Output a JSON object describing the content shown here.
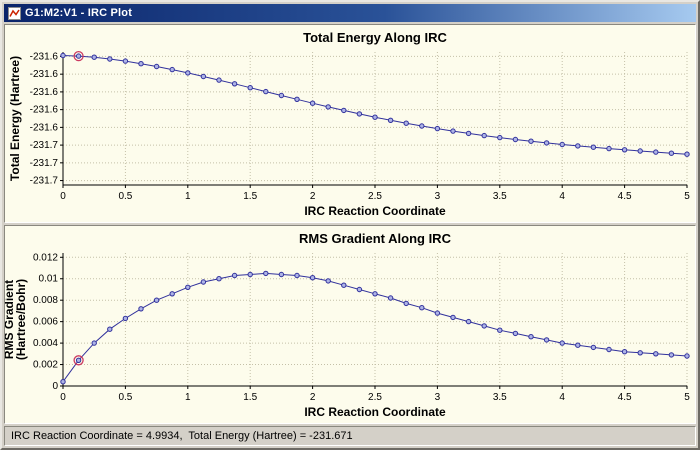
{
  "window": {
    "title": "G1:M2:V1 - IRC Plot"
  },
  "status_bar": {
    "text": "IRC Reaction Coordinate = 4.9934,  Total Energy (Hartree) = -231.671"
  },
  "icons": {
    "app": "irc-plot-app-icon"
  },
  "colors": {
    "titlebar_start": "#0a246a",
    "titlebar_end": "#a6caf0",
    "chrome": "#d4d0c8",
    "plot_bg": "#fdfcec",
    "line": "#31319c",
    "marker_fill": "#aeb4e6",
    "highlight": "#cc3a60",
    "grid": "#c4c0a8",
    "axis": "#000000"
  },
  "chart_data": [
    {
      "type": "line",
      "title": "Total Energy Along IRC",
      "xlabel": "IRC Reaction Coordinate",
      "ylabel_lines": [
        "Total Energy (Hartree)"
      ],
      "xlim": [
        0,
        5
      ],
      "ylim": [
        -231.705,
        -231.555
      ],
      "xticks": [
        0,
        0.5,
        1,
        1.5,
        2,
        2.5,
        3,
        3.5,
        4,
        4.5,
        5
      ],
      "xtick_labels": [
        "0",
        "0.5",
        "1",
        "1.5",
        "2",
        "2.5",
        "3",
        "3.5",
        "4",
        "4.5",
        "5"
      ],
      "yticks": [
        -231.56,
        -231.58,
        -231.6,
        -231.62,
        -231.64,
        -231.66,
        -231.68,
        -231.7
      ],
      "ytick_labels": [
        "-231.6",
        "-231.6",
        "-231.6",
        "-231.6",
        "-231.6",
        "-231.7",
        "-231.7",
        "-231.7"
      ],
      "x": [
        0,
        0.125,
        0.25,
        0.375,
        0.5,
        0.625,
        0.75,
        0.875,
        1,
        1.125,
        1.25,
        1.375,
        1.5,
        1.625,
        1.75,
        1.875,
        2,
        2.125,
        2.25,
        2.375,
        2.5,
        2.625,
        2.75,
        2.875,
        3,
        3.125,
        3.25,
        3.375,
        3.5,
        3.625,
        3.75,
        3.875,
        4,
        4.125,
        4.25,
        4.375,
        4.5,
        4.625,
        4.75,
        4.875,
        5
      ],
      "y": [
        -231.559,
        -231.5596,
        -231.5609,
        -231.5629,
        -231.5653,
        -231.5682,
        -231.5713,
        -231.5748,
        -231.5786,
        -231.5826,
        -231.5867,
        -231.5909,
        -231.5953,
        -231.5997,
        -231.6041,
        -231.6084,
        -231.6127,
        -231.6169,
        -231.6209,
        -231.6248,
        -231.6285,
        -231.632,
        -231.6353,
        -231.6385,
        -231.6414,
        -231.6442,
        -231.6468,
        -231.6493,
        -231.6515,
        -231.6537,
        -231.6556,
        -231.6575,
        -231.6593,
        -231.6609,
        -231.6624,
        -231.6639,
        -231.6653,
        -231.6666,
        -231.6679,
        -231.6691,
        -231.6703
      ],
      "highlight_index": 1
    },
    {
      "type": "line",
      "title": "RMS Gradient Along IRC",
      "xlabel": "IRC Reaction Coordinate",
      "ylabel_lines": [
        "RMS Gradient",
        "(Hartree/Bohr)"
      ],
      "xlim": [
        0,
        5
      ],
      "ylim": [
        0,
        0.0124
      ],
      "xticks": [
        0,
        0.5,
        1,
        1.5,
        2,
        2.5,
        3,
        3.5,
        4,
        4.5,
        5
      ],
      "xtick_labels": [
        "0",
        "0.5",
        "1",
        "1.5",
        "2",
        "2.5",
        "3",
        "3.5",
        "4",
        "4.5",
        "5"
      ],
      "yticks": [
        0,
        0.002,
        0.004,
        0.006,
        0.008,
        0.01,
        0.012
      ],
      "ytick_labels": [
        "0",
        "0.002",
        "0.004",
        "0.006",
        "0.008",
        "0.01",
        "0.012"
      ],
      "x": [
        0,
        0.125,
        0.25,
        0.375,
        0.5,
        0.625,
        0.75,
        0.875,
        1,
        1.125,
        1.25,
        1.375,
        1.5,
        1.625,
        1.75,
        1.875,
        2,
        2.125,
        2.25,
        2.375,
        2.5,
        2.625,
        2.75,
        2.875,
        3,
        3.125,
        3.25,
        3.375,
        3.5,
        3.625,
        3.75,
        3.875,
        4,
        4.125,
        4.25,
        4.375,
        4.5,
        4.625,
        4.75,
        4.875,
        5
      ],
      "y": [
        0.0004,
        0.0024,
        0.004,
        0.0053,
        0.0063,
        0.0072,
        0.008,
        0.0086,
        0.0092,
        0.0097,
        0.01,
        0.0103,
        0.0104,
        0.0105,
        0.0104,
        0.0103,
        0.0101,
        0.0098,
        0.0094,
        0.009,
        0.0086,
        0.0082,
        0.0077,
        0.0073,
        0.0068,
        0.0064,
        0.006,
        0.0056,
        0.0052,
        0.0049,
        0.0046,
        0.0043,
        0.004,
        0.0038,
        0.0036,
        0.0034,
        0.0032,
        0.0031,
        0.003,
        0.0029,
        0.0028
      ],
      "highlight_index": 1
    }
  ]
}
